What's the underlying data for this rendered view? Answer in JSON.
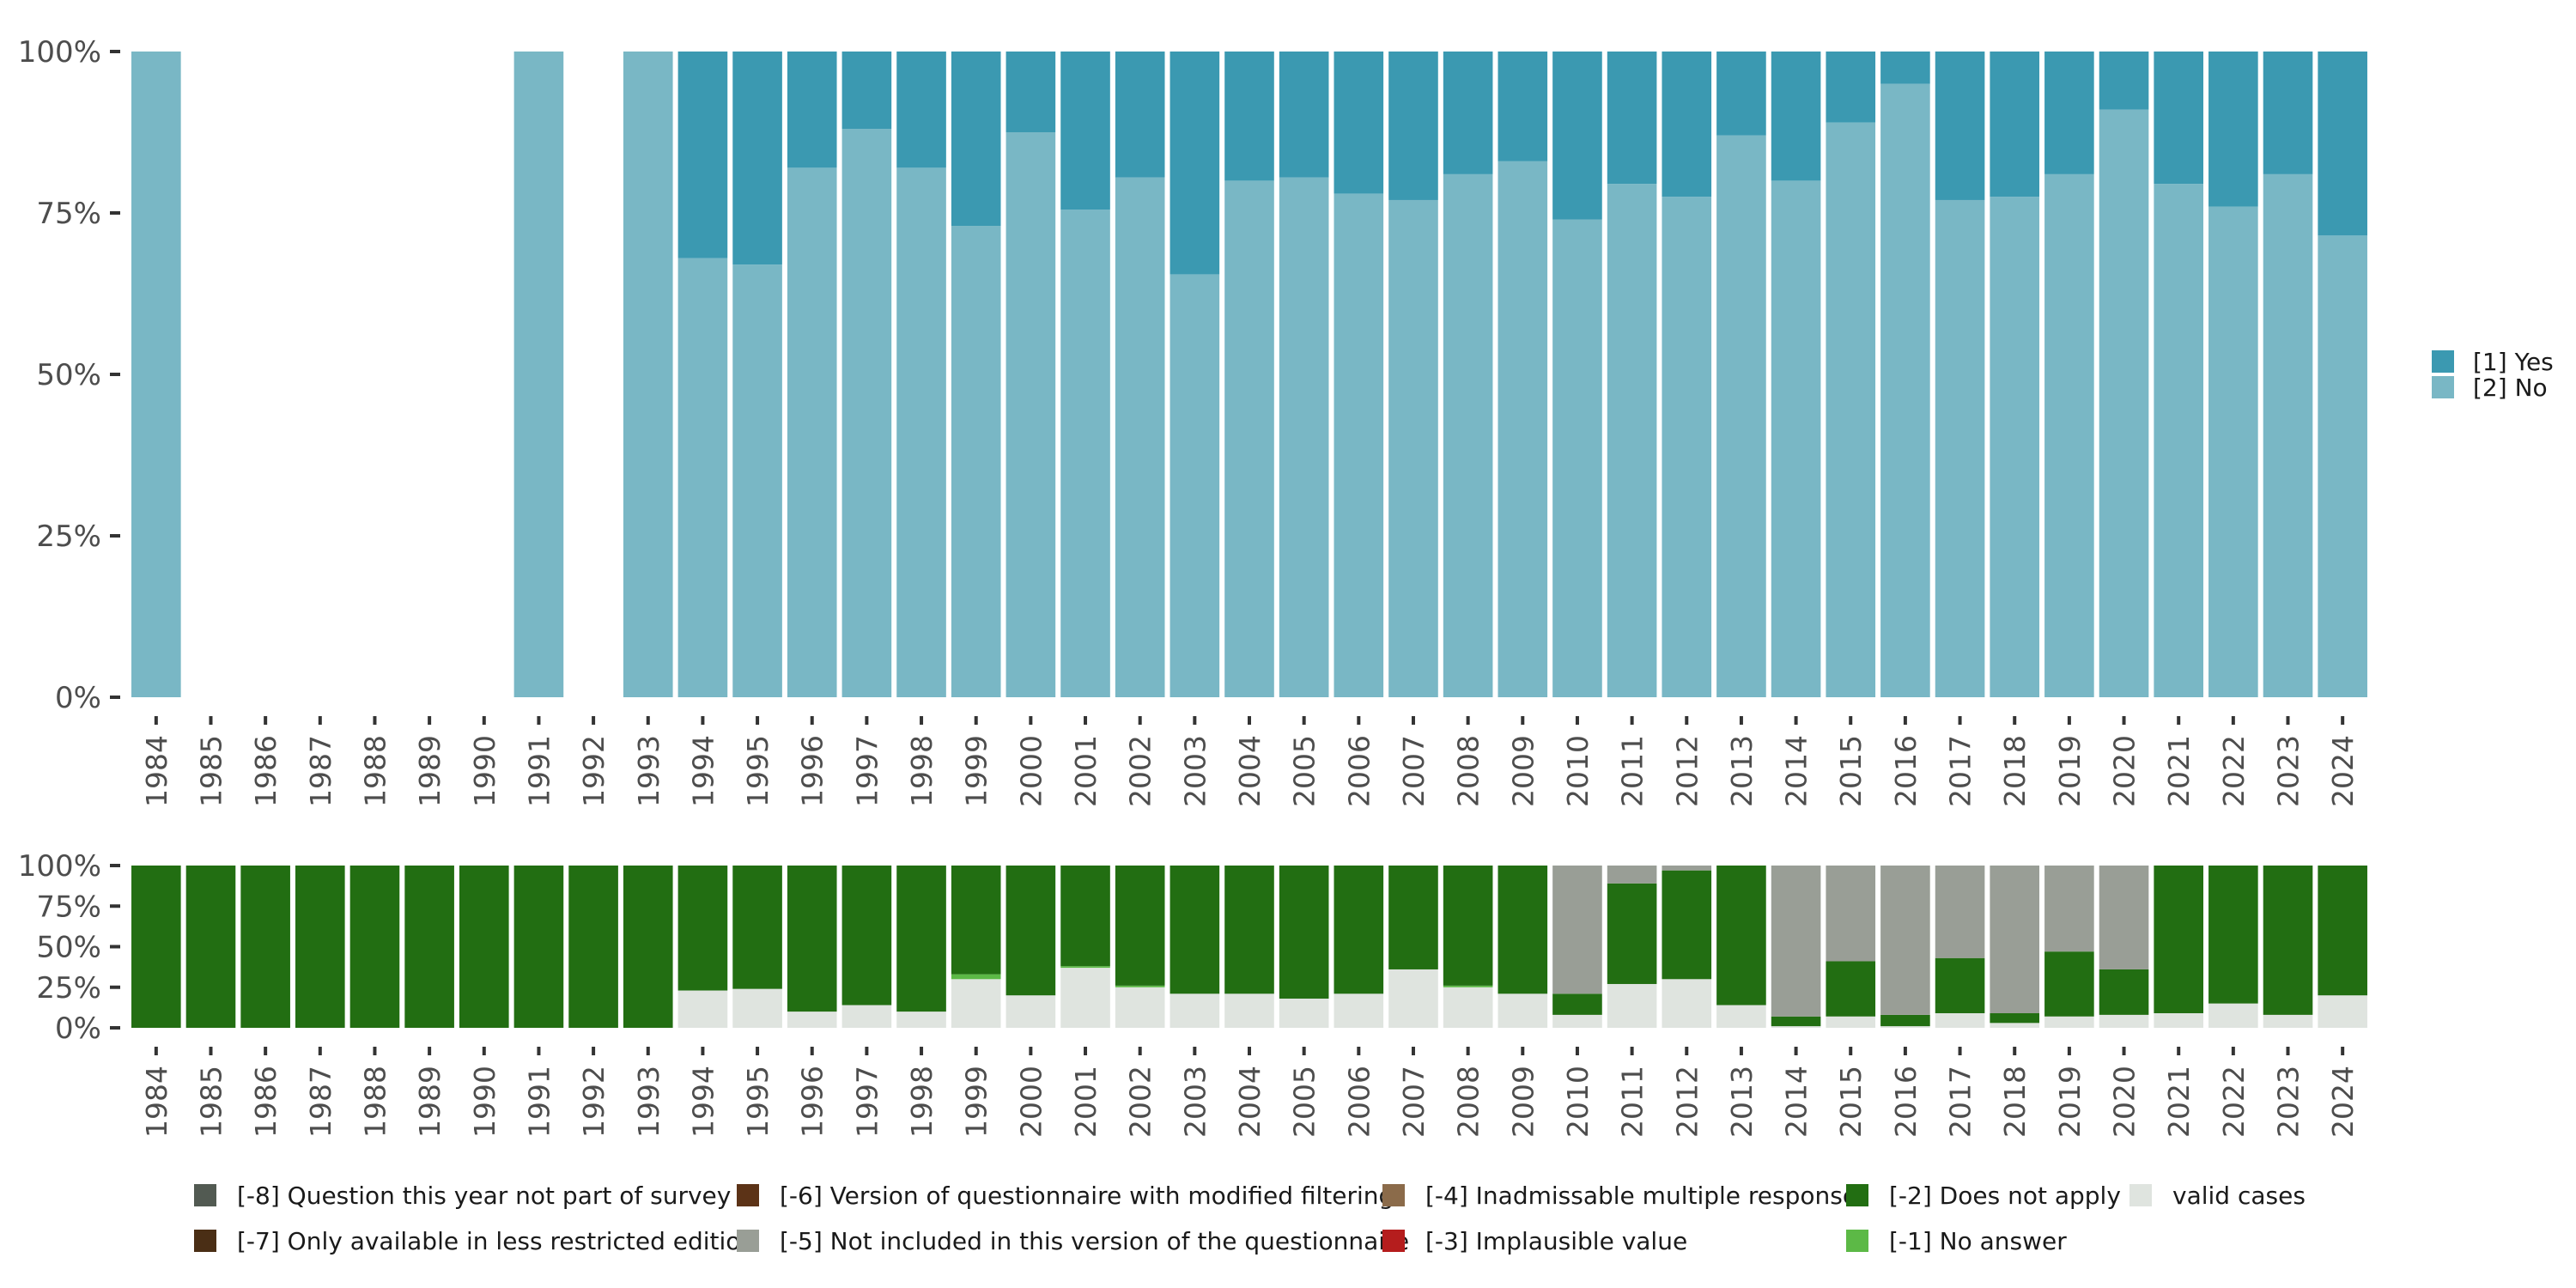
{
  "chart_data": [
    {
      "type": "bar",
      "stacked": true,
      "percent_axis": true,
      "categories": [
        "1984",
        "1985",
        "1986",
        "1987",
        "1988",
        "1989",
        "1990",
        "1991",
        "1992",
        "1993",
        "1994",
        "1995",
        "1996",
        "1997",
        "1998",
        "1999",
        "2000",
        "2001",
        "2002",
        "2003",
        "2004",
        "2005",
        "2006",
        "2007",
        "2008",
        "2009",
        "2010",
        "2011",
        "2012",
        "2013",
        "2014",
        "2015",
        "2016",
        "2017",
        "2018",
        "2019",
        "2020",
        "2021",
        "2022",
        "2023",
        "2024"
      ],
      "series": [
        {
          "name": "[2] No",
          "color": "#79b7c5",
          "values": [
            100,
            null,
            null,
            null,
            null,
            null,
            null,
            100,
            null,
            100,
            68,
            67,
            82,
            88,
            82,
            73,
            87.5,
            75.5,
            80.5,
            65.5,
            80,
            80.5,
            78,
            77,
            81,
            83,
            74,
            79.5,
            77.5,
            87,
            80,
            89,
            95,
            77,
            77.5,
            81,
            91,
            79.5,
            76,
            81,
            71.5
          ]
        },
        {
          "name": "[1] Yes",
          "color": "#3b99b1",
          "values": [
            0,
            null,
            null,
            null,
            null,
            null,
            null,
            0,
            null,
            0,
            32,
            33,
            18,
            12,
            18,
            27,
            12.5,
            24.5,
            19.5,
            34.5,
            20,
            19.5,
            22,
            23,
            19,
            17,
            26,
            20.5,
            22.5,
            13,
            20,
            11,
            5,
            23,
            22.5,
            19,
            9,
            20.5,
            24,
            19,
            28.5
          ]
        }
      ],
      "y_ticks": [
        "0%",
        "25%",
        "50%",
        "75%",
        "100%"
      ],
      "ylim": [
        0,
        100
      ],
      "legend": {
        "position": "right",
        "items": [
          {
            "label": "[1] Yes",
            "color": "#3b99b1"
          },
          {
            "label": "[2] No",
            "color": "#79b7c5"
          }
        ]
      }
    },
    {
      "type": "bar",
      "stacked": true,
      "percent_axis": true,
      "categories": [
        "1984",
        "1985",
        "1986",
        "1987",
        "1988",
        "1989",
        "1990",
        "1991",
        "1992",
        "1993",
        "1994",
        "1995",
        "1996",
        "1997",
        "1998",
        "1999",
        "2000",
        "2001",
        "2002",
        "2003",
        "2004",
        "2005",
        "2006",
        "2007",
        "2008",
        "2009",
        "2010",
        "2011",
        "2012",
        "2013",
        "2014",
        "2015",
        "2016",
        "2017",
        "2018",
        "2019",
        "2020",
        "2021",
        "2022",
        "2023",
        "2024"
      ],
      "series": [
        {
          "name": "valid cases",
          "color": "#dfe4df",
          "values": [
            0,
            0,
            0,
            0,
            0,
            0,
            0,
            0,
            0,
            0,
            23,
            24,
            10,
            14,
            10,
            30,
            20,
            37,
            25,
            21,
            21,
            18,
            21,
            36,
            25,
            21,
            8,
            27,
            30,
            14,
            1,
            7,
            1,
            9,
            3,
            7,
            8,
            9,
            15,
            8,
            20
          ]
        },
        {
          "name": "[-1] No answer",
          "color": "#5cb946",
          "values": [
            0,
            0,
            0,
            0,
            0,
            0,
            0,
            0,
            0,
            0,
            0,
            0,
            0,
            0,
            0,
            3,
            0,
            1,
            1,
            0,
            0,
            0,
            0,
            0,
            1,
            0,
            0,
            0,
            0,
            0,
            0,
            0,
            0,
            0,
            0,
            0,
            0,
            0,
            0,
            0,
            0
          ]
        },
        {
          "name": "[-2] Does not apply",
          "color": "#226e12",
          "values": [
            100,
            100,
            100,
            100,
            100,
            100,
            100,
            100,
            100,
            100,
            77,
            76,
            90,
            86,
            90,
            67,
            80,
            62,
            74,
            79,
            79,
            82,
            79,
            64,
            74,
            79,
            13,
            62,
            67,
            86,
            6,
            34,
            7,
            34,
            6,
            40,
            28,
            91,
            85,
            92,
            80
          ]
        },
        {
          "name": "[-5] Not included in this version of the questionnaire",
          "color": "#999e96",
          "values": [
            0,
            0,
            0,
            0,
            0,
            0,
            0,
            0,
            0,
            0,
            0,
            0,
            0,
            0,
            0,
            0,
            0,
            0,
            0,
            0,
            0,
            0,
            0,
            0,
            0,
            0,
            79,
            11,
            3,
            0,
            93,
            59,
            92,
            57,
            91,
            53,
            64,
            0,
            0,
            0,
            0
          ]
        }
      ],
      "y_ticks": [
        "0%",
        "25%",
        "50%",
        "75%",
        "100%"
      ],
      "ylim": [
        0,
        100
      ],
      "legend": {
        "position": "bottom",
        "items": [
          {
            "label": "[-8] Question this year not part of survey",
            "color": "#525a52"
          },
          {
            "label": "[-7] Only available in less restricted edition",
            "color": "#4a2e15"
          },
          {
            "label": "[-6] Version of questionnaire with modified filtering",
            "color": "#5c3317"
          },
          {
            "label": "[-5] Not included in this version of the questionnaire",
            "color": "#999e96"
          },
          {
            "label": "[-4] Inadmissable multiple response",
            "color": "#8b6b4a"
          },
          {
            "label": "[-3] Implausible value",
            "color": "#b51d1d"
          },
          {
            "label": "[-2] Does not apply",
            "color": "#226e12"
          },
          {
            "label": "[-1] No answer",
            "color": "#5cb946"
          },
          {
            "label": "valid cases",
            "color": "#dfe4df"
          }
        ]
      }
    }
  ]
}
